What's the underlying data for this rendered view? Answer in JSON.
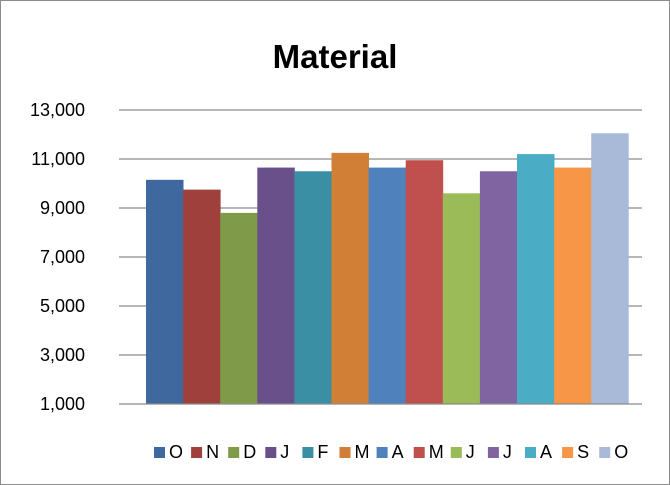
{
  "chart_data": {
    "type": "bar",
    "title": "Material",
    "xlabel": "",
    "ylabel": "",
    "ylim": [
      1000,
      13000
    ],
    "yticks": [
      "1,000",
      "3,000",
      "5,000",
      "7,000",
      "9,000",
      "11,000",
      "13,000"
    ],
    "grid": true,
    "legend_position": "bottom",
    "series": [
      {
        "name": "O",
        "value": 10150,
        "color": "#3E689E"
      },
      {
        "name": "N",
        "value": 9750,
        "color": "#A0403D"
      },
      {
        "name": "D",
        "value": 8800,
        "color": "#7F9A48"
      },
      {
        "name": "J",
        "value": 10650,
        "color": "#69508A"
      },
      {
        "name": "F",
        "value": 10500,
        "color": "#3A8FA4"
      },
      {
        "name": "M",
        "value": 11250,
        "color": "#D17E36"
      },
      {
        "name": "A",
        "value": 10650,
        "color": "#4F81BD"
      },
      {
        "name": "M",
        "value": 10950,
        "color": "#C0504D"
      },
      {
        "name": "J",
        "value": 9600,
        "color": "#9BBB59"
      },
      {
        "name": "J",
        "value": 10500,
        "color": "#8064A2"
      },
      {
        "name": "A",
        "value": 11200,
        "color": "#4BACC6"
      },
      {
        "name": "S",
        "value": 10650,
        "color": "#F79646"
      },
      {
        "name": "O",
        "value": 12050,
        "color": "#A9B9D8"
      }
    ]
  }
}
